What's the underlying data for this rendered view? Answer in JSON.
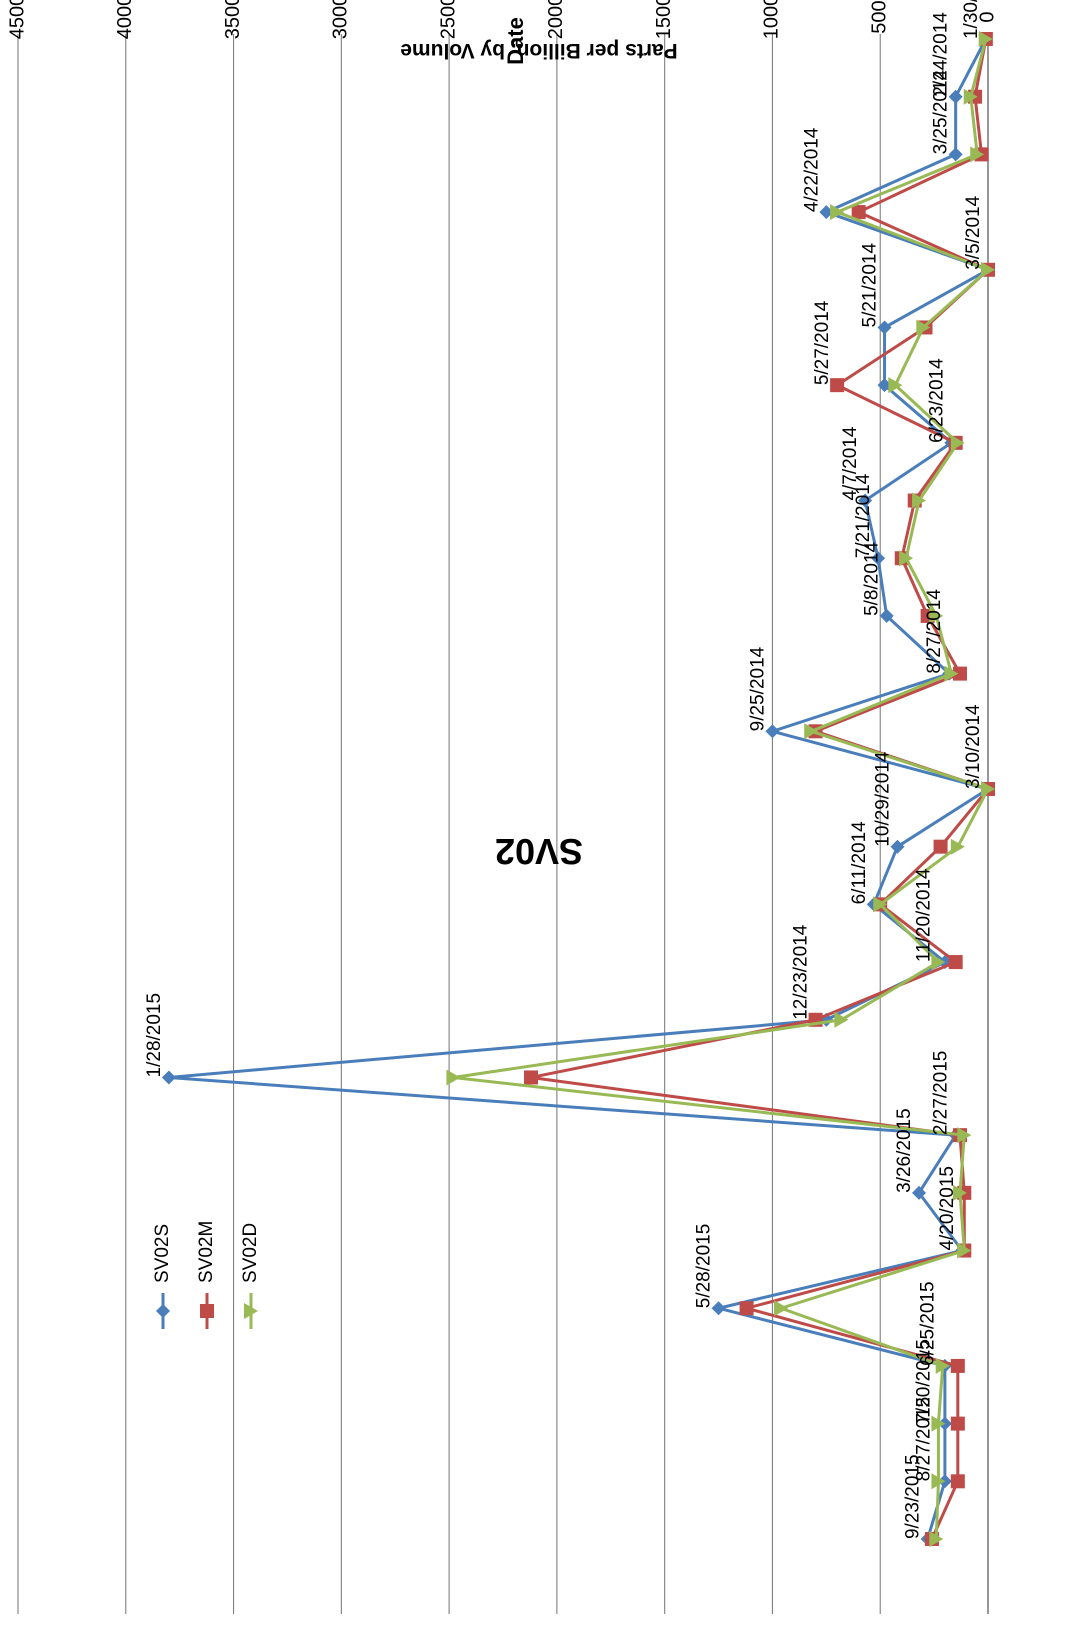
{
  "chart_data": {
    "type": "line",
    "title": "SV02",
    "xlabel": "Date",
    "ylabel": "Parts per Billion, by Volume",
    "ylim": [
      0,
      4500
    ],
    "yticks": [
      0,
      500,
      1000,
      1500,
      2000,
      2500,
      3000,
      3500,
      4000,
      4500
    ],
    "grid": true,
    "orientation": "rotated 180 degrees",
    "legend_position": "lower-left",
    "categories": [
      "1/30/2014",
      "2/24/2014",
      "3/25/2014",
      "4/22/2014",
      "3/5/2014",
      "5/21/2014",
      "5/27/2014",
      "6/23/2014",
      "4/7/2014",
      "7/21/2014",
      "5/8/2014",
      "8/27/2014",
      "9/25/2014",
      "3/10/2014",
      "10/29/2014",
      "6/11/2014",
      "11/20/2014",
      "12/23/2014",
      "1/28/2015",
      "2/27/2015",
      "3/26/2015",
      "4/20/2015",
      "5/28/2015",
      "6/25/2015",
      "7/20/2015",
      "8/27/2015",
      "9/23/2015"
    ],
    "point_labels": [
      "1/30/2014",
      "2/24/2014",
      "3/25/2014",
      "4/22/2014",
      "3/5/2014",
      "5/21/2014",
      "5/27/2014",
      "6/23/2014",
      "4/7/2014",
      "7/21/2014",
      "5/8/2014",
      "8/27/2014",
      "9/25/2014",
      "3/10/2014",
      "10/29/2014",
      "6/11/2014",
      "11/20/2014",
      "12/23/2014",
      "1/28/2015",
      "2/27/2015",
      "3/26/2015",
      "4/20/2015",
      "5/28/2015",
      "6/25/2015",
      "7/20/2015",
      "8/27/2015",
      "9/23/2015"
    ],
    "series": [
      {
        "name": "SV02S",
        "color": "#4a7ebb",
        "marker": "diamond",
        "values": [
          10,
          150,
          150,
          750,
          0,
          480,
          480,
          170,
          570,
          510,
          470,
          180,
          1000,
          0,
          420,
          530,
          200,
          750,
          3800,
          150,
          320,
          120,
          1250,
          200,
          200,
          200,
          280
        ]
      },
      {
        "name": "SV02M",
        "color": "#be4b48",
        "marker": "square",
        "values": [
          10,
          60,
          30,
          600,
          0,
          290,
          700,
          150,
          340,
          400,
          280,
          130,
          800,
          0,
          220,
          500,
          150,
          800,
          2120,
          130,
          110,
          110,
          1120,
          140,
          140,
          140,
          260
        ]
      },
      {
        "name": "SV02D",
        "color": "#98b954",
        "marker": "triangle",
        "values": [
          10,
          80,
          50,
          700,
          0,
          300,
          430,
          140,
          320,
          380,
          240,
          170,
          820,
          0,
          140,
          500,
          230,
          680,
          2480,
          110,
          130,
          110,
          960,
          210,
          230,
          230,
          240
        ]
      }
    ]
  }
}
